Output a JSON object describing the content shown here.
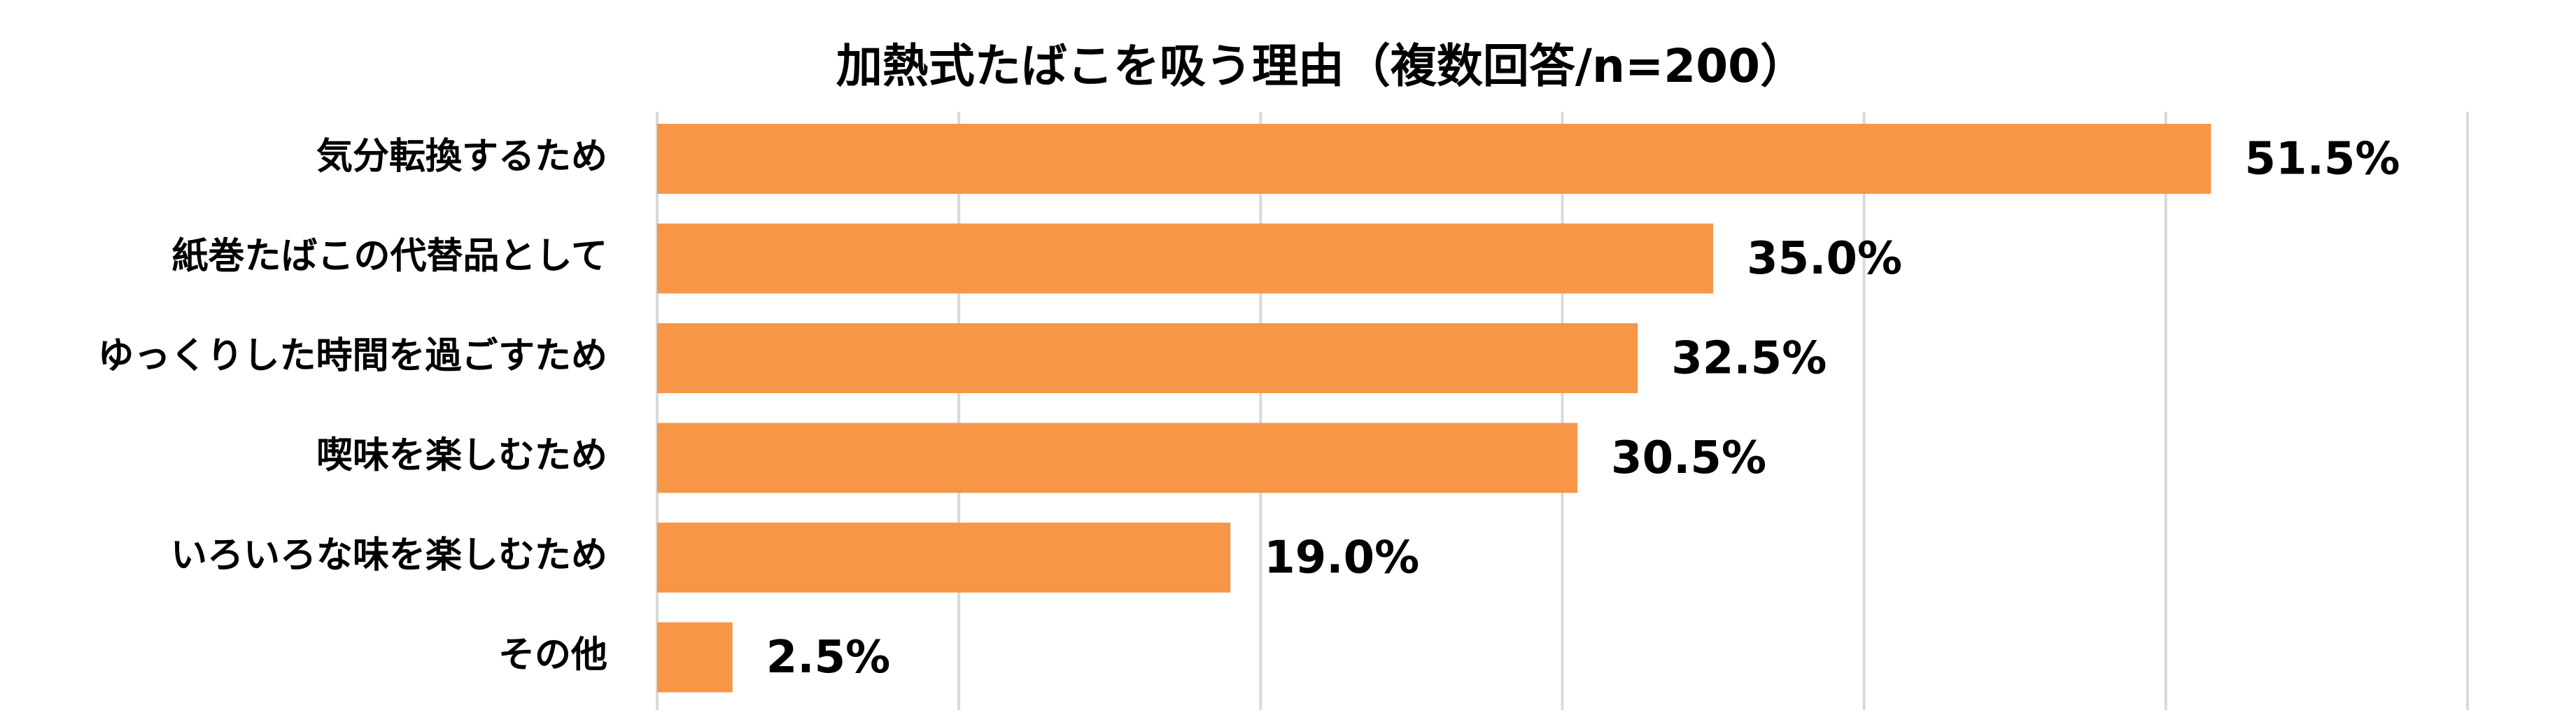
{
  "chart_data": {
    "type": "bar",
    "orientation": "horizontal",
    "title": "加熱式たばこを吸う理由（複数回答/n=200）",
    "categories": [
      "気分転換するため",
      "紙巻たばこの代替品として",
      "ゆっくりした時間を過ごすため",
      "喫味を楽しむため",
      "いろいろな味を楽しむため",
      "その他"
    ],
    "values": [
      51.5,
      35.0,
      32.5,
      30.5,
      19.0,
      2.5
    ],
    "value_labels": [
      "51.5%",
      "35.0%",
      "32.5%",
      "30.5%",
      "19.0%",
      "2.5%"
    ],
    "color": "#f79646",
    "xlim": [
      0,
      60
    ],
    "xticks": [
      0,
      10,
      20,
      30,
      40,
      50,
      60
    ],
    "grid": true
  }
}
